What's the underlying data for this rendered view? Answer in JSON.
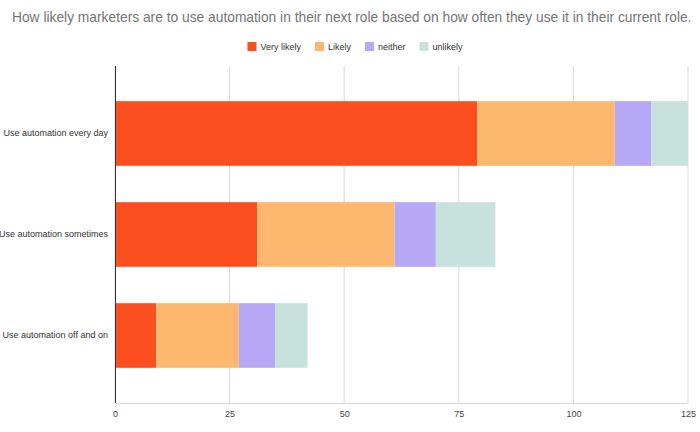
{
  "chart_data": {
    "type": "bar",
    "orientation": "horizontal",
    "stacked": true,
    "grid": true,
    "legend": "top",
    "title": "How likely marketers are to use automation in their next role based on how often they use it in their current role.",
    "categories": [
      "Use automation every day",
      "Use automation sometimes",
      "Use automation off and on"
    ],
    "series": [
      {
        "name": "Very likely",
        "color": "#fc4f1f",
        "values": [
          79,
          31,
          9
        ]
      },
      {
        "name": "Likely",
        "color": "#fbb86e",
        "values": [
          30,
          30,
          18
        ]
      },
      {
        "name": "neither",
        "color": "#b7a8f5",
        "values": [
          8,
          9,
          8
        ]
      },
      {
        "name": "unlikely",
        "color": "#c7e1dc",
        "values": [
          8,
          13,
          7
        ]
      }
    ],
    "xlim": [
      0,
      125
    ],
    "xticks": [
      0,
      25,
      50,
      75,
      100,
      125
    ]
  }
}
